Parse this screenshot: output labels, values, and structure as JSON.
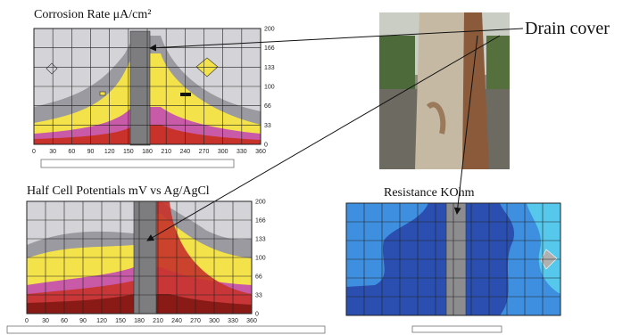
{
  "panels": [
    {
      "title": "Corrosion Rate μA/cm²",
      "xticks": [
        "0",
        "30",
        "60",
        "90",
        "120",
        "150",
        "180",
        "210",
        "240",
        "270",
        "300",
        "330",
        "360"
      ],
      "yticks": [
        "0",
        "33",
        "66",
        "100",
        "133",
        "166",
        "200"
      ]
    },
    {
      "title": "Half Cell Potentials mV vs Ag/AgCl",
      "xticks": [
        "0",
        "30",
        "60",
        "90",
        "120",
        "150",
        "180",
        "210",
        "240",
        "270",
        "300",
        "330",
        "360"
      ],
      "yticks": [
        "0",
        "33",
        "66",
        "100",
        "133",
        "166",
        "200"
      ]
    },
    {
      "title": "Resistance KOhm"
    }
  ],
  "callout": "Drain cover"
}
